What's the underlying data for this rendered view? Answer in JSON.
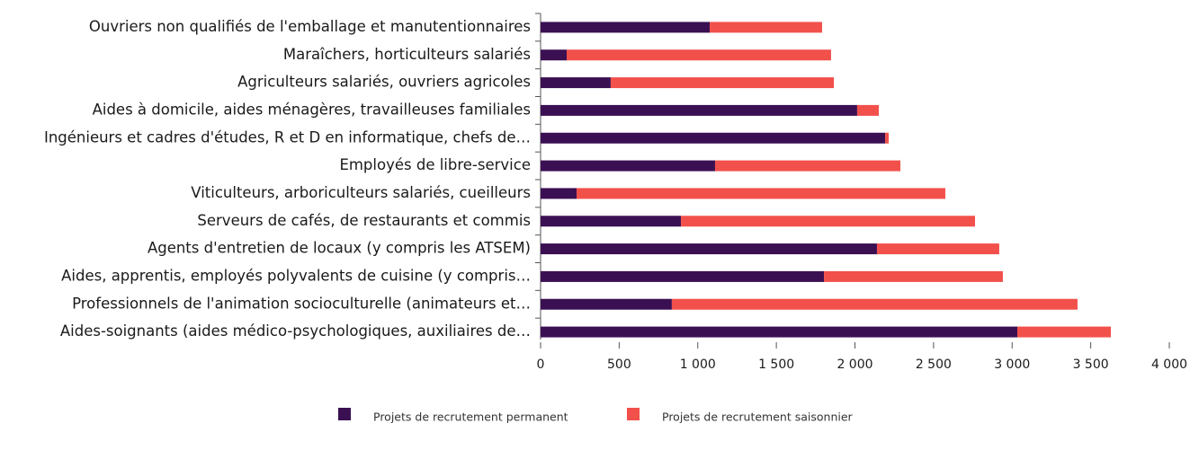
{
  "chart_data": {
    "type": "bar",
    "orientation": "horizontal",
    "stacked": true,
    "categories": [
      "Ouvriers non qualifiés de l'emballage et manutentionnaires",
      "Maraîchers, horticulteurs salariés",
      "Agriculteurs salariés, ouvriers agricoles",
      "Aides à domicile, aides ménagères, travailleuses familiales",
      "Ingénieurs et cadres d'études, R et D en informatique, chefs de…",
      "Employés de libre-service",
      "Viticulteurs, arboriculteurs salariés, cueilleurs",
      "Serveurs de cafés, de restaurants et commis",
      "Agents d'entretien de locaux (y compris les ATSEM)",
      "Aides, apprentis, employés polyvalents de cuisine (y compris…",
      "Professionnels de l'animation socioculturelle (animateurs et…",
      "Aides-soignants (aides médico-psychologiques, auxiliaires de…"
    ],
    "series": [
      {
        "name": "Projets de recrutement permanent",
        "color": "#3b1053",
        "values": [
          1076,
          166,
          446,
          2014,
          2192,
          1110,
          229,
          893,
          2140,
          1803,
          835,
          3033
        ]
      },
      {
        "name": "Projets de recrutement saisonnier",
        "color": "#f2504b",
        "values": [
          715,
          1682,
          1420,
          138,
          23,
          1179,
          2346,
          1871,
          778,
          1138,
          2581,
          595
        ]
      }
    ],
    "xlim": [
      0,
      4000
    ],
    "xticks": [
      0,
      500,
      {
        "value": 1000,
        "label": "1 000"
      },
      {
        "value": 1500,
        "label": "1 500"
      },
      {
        "value": 2000,
        "label": "2 000"
      },
      {
        "value": 2500,
        "label": "2 500"
      },
      {
        "value": 3000,
        "label": "3 000"
      },
      {
        "value": 3500,
        "label": "3 500"
      },
      {
        "value": 4000,
        "label": "4 000"
      }
    ],
    "grid": false,
    "legend": "bottom"
  }
}
